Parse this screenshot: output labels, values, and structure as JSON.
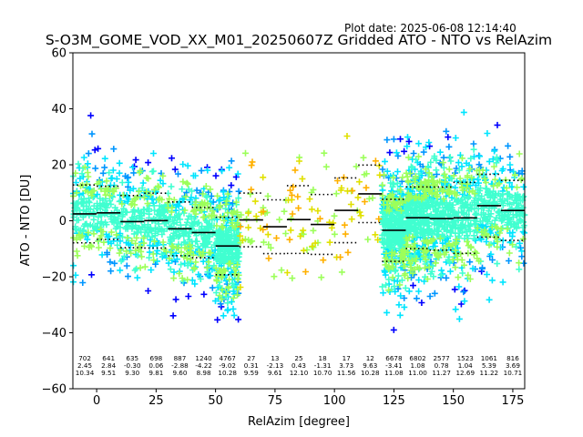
{
  "plot_date": "Plot date: 2025-06-08 12:14:40",
  "chart_data": {
    "type": "scatter",
    "title": "S-O3M_GOME_VOD_XX_M01_20250607Z Gridded ATO - NTO vs RelAzim",
    "xlabel": "RelAzim [degree]",
    "ylabel": "ATO - NTO [DU]",
    "xlim": [
      -10,
      180
    ],
    "ylim": [
      -60,
      60
    ],
    "x_ticks": [
      "0",
      "25",
      "50",
      "75",
      "100",
      "125",
      "150",
      "175"
    ],
    "y_ticks": [
      "−60",
      "−40",
      "−20",
      "0",
      "20",
      "40",
      "60"
    ],
    "grid": false,
    "marker": "+",
    "density_colors": [
      "#0000ff",
      "#0096ff",
      "#00e5ff",
      "#40ffd0",
      "#9cff5a",
      "#e0e000",
      "#ffb000"
    ],
    "bins": [
      {
        "center": -5,
        "count": "702",
        "mean": "2.45",
        "std": "10.34"
      },
      {
        "center": 5,
        "count": "641",
        "mean": "2.84",
        "std": "9.51"
      },
      {
        "center": 15,
        "count": "635",
        "mean": "-0.30",
        "std": "9.30"
      },
      {
        "center": 25,
        "count": "698",
        "mean": "0.06",
        "std": "9.81"
      },
      {
        "center": 35,
        "count": "887",
        "mean": "-2.88",
        "std": "9.60"
      },
      {
        "center": 45,
        "count": "1240",
        "mean": "-4.22",
        "std": "8.98"
      },
      {
        "center": 55,
        "count": "4767",
        "mean": "-9.02",
        "std": "10.28"
      },
      {
        "center": 65,
        "count": "27",
        "mean": "0.31",
        "std": "9.59"
      },
      {
        "center": 75,
        "count": "13",
        "mean": "-2.13",
        "std": "9.61"
      },
      {
        "center": 85,
        "count": "25",
        "mean": "0.43",
        "std": "12.10"
      },
      {
        "center": 95,
        "count": "18",
        "mean": "-1.31",
        "std": "10.70"
      },
      {
        "center": 105,
        "count": "17",
        "mean": "3.73",
        "std": "11.56"
      },
      {
        "center": 115,
        "count": "12",
        "mean": "9.63",
        "std": "10.28"
      },
      {
        "center": 125,
        "count": "6678",
        "mean": "-3.41",
        "std": "11.08"
      },
      {
        "center": 135,
        "count": "6802",
        "mean": "1.08",
        "std": "11.00"
      },
      {
        "center": 145,
        "count": "2577",
        "mean": "0.78",
        "std": "11.27"
      },
      {
        "center": 155,
        "count": "1523",
        "mean": "1.04",
        "std": "12.69"
      },
      {
        "center": 165,
        "count": "1061",
        "mean": "5.39",
        "std": "11.22"
      },
      {
        "center": 175,
        "count": "816",
        "mean": "3.69",
        "std": "10.71"
      }
    ]
  }
}
